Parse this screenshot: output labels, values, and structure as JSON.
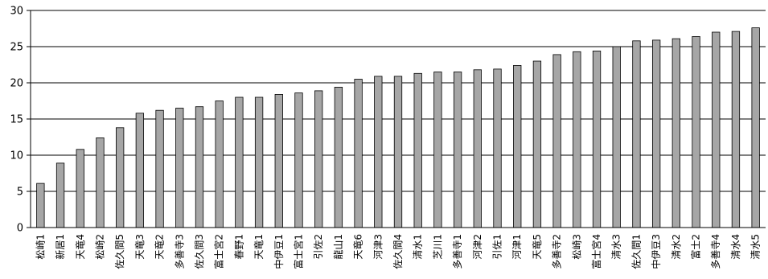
{
  "chart_data": {
    "type": "bar",
    "title": "",
    "xlabel": "",
    "ylabel": "",
    "ylim": [
      0,
      30
    ],
    "yticks": [
      0,
      5,
      10,
      15,
      20,
      25,
      30
    ],
    "grid": true,
    "bar_color": "#a6a6a6",
    "categories": [
      "松崎1",
      "新居1",
      "天竜4",
      "松崎2",
      "佐久間5",
      "天竜3",
      "天竜2",
      "多善寺3",
      "佐久間3",
      "富士宮2",
      "春野1",
      "天竜1",
      "中伊豆1",
      "富士宮1",
      "引佐2",
      "龍山1",
      "天竜6",
      "河津3",
      "佐久間4",
      "清水1",
      "芝川1",
      "多善寺1",
      "河津2",
      "引佐1",
      "河津1",
      "天竜5",
      "多善寺2",
      "松崎3",
      "富士宮4",
      "清水3",
      "佐久間1",
      "中伊豆3",
      "清水2",
      "富士2",
      "多善寺4",
      "清水4",
      "清水5"
    ],
    "values": [
      6.1,
      8.9,
      10.8,
      12.4,
      13.8,
      15.8,
      16.2,
      16.5,
      16.7,
      17.5,
      18.0,
      18.0,
      18.4,
      18.6,
      18.9,
      19.4,
      20.5,
      20.9,
      20.9,
      21.3,
      21.5,
      21.5,
      21.8,
      21.9,
      22.4,
      23.0,
      23.9,
      24.3,
      24.4,
      25.0,
      25.8,
      25.9,
      26.1,
      26.4,
      27.0,
      27.1,
      27.6
    ]
  }
}
